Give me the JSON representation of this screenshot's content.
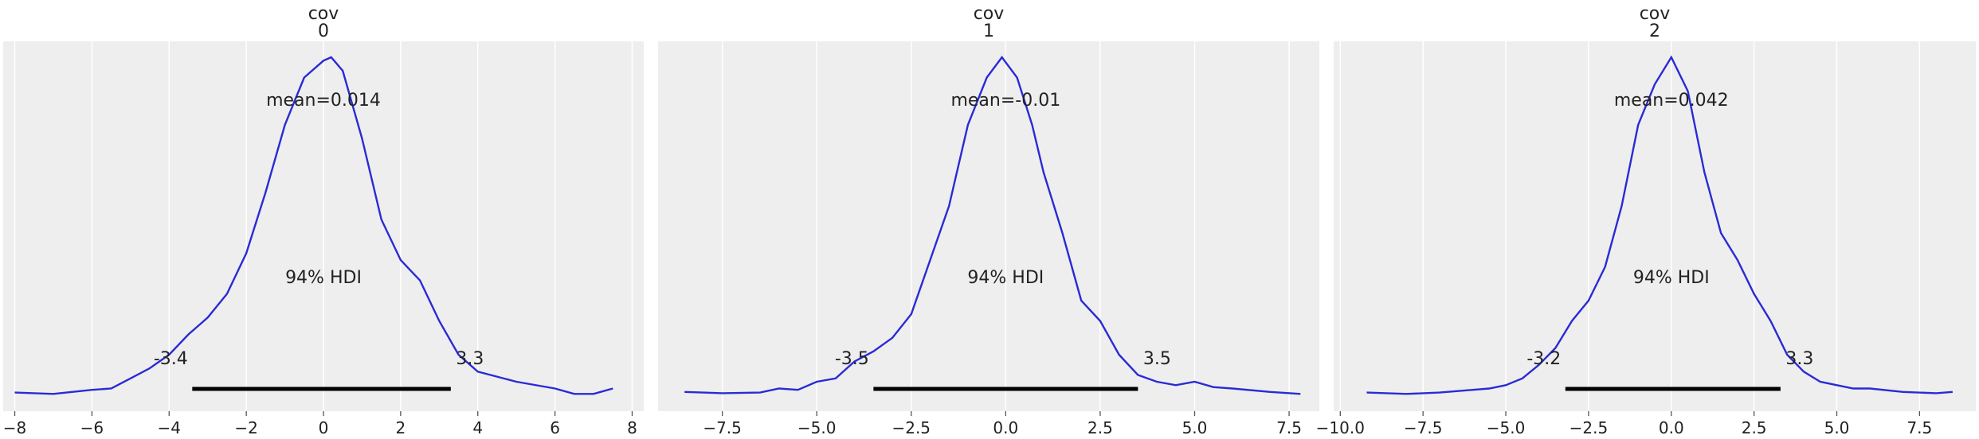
{
  "chart_data": [
    {
      "type": "line",
      "title_line1": "cov",
      "title_line2": "0",
      "xlim": [
        -8.3,
        8.3
      ],
      "xticks": [
        -8,
        -6,
        -4,
        -2,
        0,
        2,
        4,
        6,
        8
      ],
      "xtick_labels": [
        "−8",
        "−6",
        "−4",
        "−2",
        "0",
        "2",
        "4",
        "6",
        "8"
      ],
      "grid": true,
      "mean_label": "mean=0.014",
      "hdi_label": "94% HDI",
      "hdi": [
        -3.4,
        3.3
      ],
      "hdi_low_label": "-3.4",
      "hdi_high_label": "3.3",
      "curve": {
        "x": [
          -8.0,
          -7.0,
          -6.0,
          -5.5,
          -5.0,
          -4.5,
          -4.0,
          -3.5,
          -3.0,
          -2.5,
          -2.0,
          -1.5,
          -1.0,
          -0.5,
          0.0,
          0.2,
          0.5,
          1.0,
          1.5,
          2.0,
          2.5,
          3.0,
          3.5,
          4.0,
          5.0,
          6.0,
          6.5,
          7.0,
          7.5
        ],
        "y": [
          0.004,
          0.002,
          0.008,
          0.01,
          0.025,
          0.04,
          0.06,
          0.09,
          0.115,
          0.15,
          0.21,
          0.3,
          0.4,
          0.47,
          0.495,
          0.5,
          0.48,
          0.38,
          0.26,
          0.2,
          0.17,
          0.11,
          0.06,
          0.035,
          0.02,
          0.01,
          0.002,
          0.002,
          0.01
        ]
      }
    },
    {
      "type": "line",
      "title_line1": "cov",
      "title_line2": "1",
      "xlim": [
        -9.2,
        8.3
      ],
      "xticks": [
        -7.5,
        -5.0,
        -2.5,
        0.0,
        2.5,
        5.0,
        7.5
      ],
      "xtick_labels": [
        "−7.5",
        "−5.0",
        "−2.5",
        "0.0",
        "2.5",
        "5.0",
        "7.5"
      ],
      "grid": true,
      "mean_label": "mean=-0.01",
      "hdi_label": "94% HDI",
      "hdi": [
        -3.5,
        3.5
      ],
      "hdi_low_label": "-3.5",
      "hdi_high_label": "3.5",
      "curve": {
        "x": [
          -8.5,
          -7.5,
          -6.5,
          -6.0,
          -5.5,
          -5.0,
          -4.5,
          -4.0,
          -3.5,
          -3.0,
          -2.5,
          -2.0,
          -1.5,
          -1.0,
          -0.5,
          -0.1,
          0.3,
          0.7,
          1.0,
          1.5,
          2.0,
          2.5,
          3.0,
          3.5,
          4.0,
          4.5,
          5.0,
          5.5,
          6.0,
          7.0,
          7.8
        ],
        "y": [
          0.005,
          0.003,
          0.004,
          0.01,
          0.008,
          0.02,
          0.025,
          0.05,
          0.065,
          0.085,
          0.12,
          0.2,
          0.28,
          0.4,
          0.47,
          0.5,
          0.47,
          0.4,
          0.33,
          0.24,
          0.14,
          0.11,
          0.06,
          0.03,
          0.02,
          0.015,
          0.02,
          0.012,
          0.01,
          0.005,
          0.002
        ]
      }
    },
    {
      "type": "line",
      "title_line1": "cov",
      "title_line2": "2",
      "xlim": [
        -10.2,
        9.2
      ],
      "xticks": [
        -10.0,
        -7.5,
        -5.0,
        -2.5,
        0.0,
        2.5,
        5.0,
        7.5
      ],
      "xtick_labels": [
        "−10.0",
        "−7.5",
        "−5.0",
        "−2.5",
        "0.0",
        "2.5",
        "5.0",
        "7.5"
      ],
      "grid": true,
      "mean_label": "mean=0.042",
      "hdi_label": "94% HDI",
      "hdi": [
        -3.2,
        3.3
      ],
      "hdi_low_label": "-3.2",
      "hdi_high_label": "3.3",
      "curve": {
        "x": [
          -9.2,
          -8.0,
          -7.0,
          -6.0,
          -5.5,
          -5.0,
          -4.5,
          -4.0,
          -3.5,
          -3.0,
          -2.5,
          -2.0,
          -1.5,
          -1.0,
          -0.5,
          0.0,
          0.5,
          1.0,
          1.5,
          2.0,
          2.5,
          3.0,
          3.5,
          4.0,
          4.5,
          5.0,
          5.5,
          6.0,
          7.0,
          8.0,
          8.5
        ],
        "y": [
          0.004,
          0.002,
          0.004,
          0.008,
          0.01,
          0.015,
          0.025,
          0.045,
          0.07,
          0.11,
          0.14,
          0.19,
          0.28,
          0.4,
          0.46,
          0.5,
          0.45,
          0.33,
          0.24,
          0.2,
          0.15,
          0.11,
          0.06,
          0.035,
          0.02,
          0.015,
          0.01,
          0.01,
          0.005,
          0.003,
          0.005
        ]
      }
    }
  ]
}
